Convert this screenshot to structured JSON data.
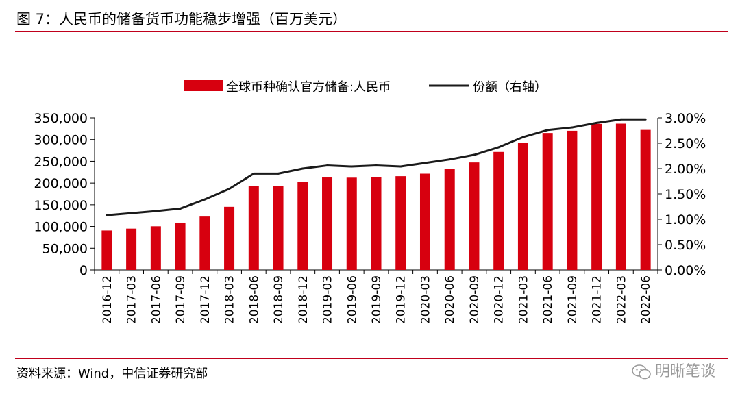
{
  "header": {
    "title": "图 7：人民币的储备货币功能稳步增强（百万美元）"
  },
  "footer": {
    "source": "资料来源：Wind，中信证券研究部",
    "watermark": "明晰笔谈"
  },
  "colors": {
    "bar": "#d7000f",
    "line": "#1a1a1a",
    "rule": "#c0001b"
  },
  "chart_data": {
    "type": "bar",
    "categories": [
      "2016-12",
      "2017-03",
      "2017-06",
      "2017-09",
      "2017-12",
      "2018-03",
      "2018-06",
      "2018-09",
      "2018-12",
      "2019-03",
      "2019-06",
      "2019-09",
      "2019-12",
      "2020-03",
      "2020-06",
      "2020-09",
      "2020-12",
      "2021-03",
      "2021-06",
      "2021-09",
      "2021-12",
      "2022-03",
      "2022-06"
    ],
    "series": [
      {
        "name": "全球币种确认官方储备:人民币",
        "kind": "bar",
        "axis": "left",
        "values": [
          90780,
          95110,
          100400,
          108800,
          122800,
          145300,
          193800,
          192900,
          203100,
          212800,
          212400,
          214400,
          215800,
          221500,
          232000,
          247300,
          271500,
          292700,
          315100,
          320200,
          336100,
          336600,
          322200
        ]
      },
      {
        "name": "份额（右轴）",
        "kind": "line",
        "axis": "right",
        "values": [
          0.0108,
          0.0112,
          0.0116,
          0.0121,
          0.0139,
          0.016,
          0.019,
          0.019,
          0.02,
          0.0206,
          0.0204,
          0.0206,
          0.0204,
          0.0211,
          0.0218,
          0.0227,
          0.0242,
          0.0262,
          0.0276,
          0.0281,
          0.029,
          0.0297,
          0.0297
        ]
      }
    ],
    "y_left": {
      "min": 0,
      "max": 350000,
      "ticks": [
        0,
        50000,
        100000,
        150000,
        200000,
        250000,
        300000,
        350000
      ],
      "tick_labels": [
        "0",
        "50,000",
        "100,000",
        "150,000",
        "200,000",
        "250,000",
        "300,000",
        "350,000"
      ]
    },
    "y_right": {
      "min": 0,
      "max": 0.03,
      "ticks": [
        0,
        0.005,
        0.01,
        0.015,
        0.02,
        0.025,
        0.03
      ],
      "tick_labels": [
        "0.00%",
        "0.50%",
        "1.00%",
        "1.50%",
        "2.00%",
        "2.50%",
        "3.00%"
      ]
    },
    "legend": {
      "placement": "top-center",
      "labels": [
        "全球币种确认官方储备:人民币",
        "份额（右轴）"
      ]
    },
    "grid": false
  }
}
